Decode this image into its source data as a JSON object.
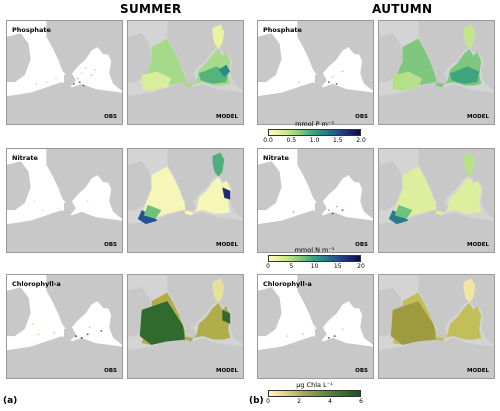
{
  "titles": {
    "summer": "SUMMER",
    "autumn": "AUTUMN"
  },
  "sublabels": {
    "a": "(a)",
    "b": "(b)"
  },
  "tags": {
    "obs": "OBS",
    "model": "MODEL"
  },
  "rows": [
    {
      "variable": "Phosphate"
    },
    {
      "variable": "Nitrate"
    },
    {
      "variable": "Chlorophyll-a"
    }
  ],
  "colorbars": [
    {
      "unit": "mmol P m⁻³",
      "ticks": [
        "0.0",
        "0.5",
        "1.0",
        "1.5",
        "2.0"
      ],
      "range": [
        0,
        2
      ]
    },
    {
      "unit": "mmol N m⁻³",
      "ticks": [
        "0",
        "5",
        "10",
        "15",
        "20"
      ],
      "range": [
        0,
        20
      ]
    },
    {
      "unit": "µg Chla L⁻¹",
      "ticks": [
        "0",
        "2",
        "4",
        "6"
      ],
      "range": [
        0,
        6
      ]
    }
  ],
  "colormap": [
    "#fdfbc3",
    "#e1ef9b",
    "#b3de85",
    "#6ec27b",
    "#36a07d",
    "#2a7a8c",
    "#23528f",
    "#1c2a74",
    "#0e0b45"
  ],
  "chl_colormap": [
    "#fff9c4",
    "#d9d07a",
    "#a4a648",
    "#6c8a3a",
    "#3b6e33",
    "#1f4f26"
  ]
}
